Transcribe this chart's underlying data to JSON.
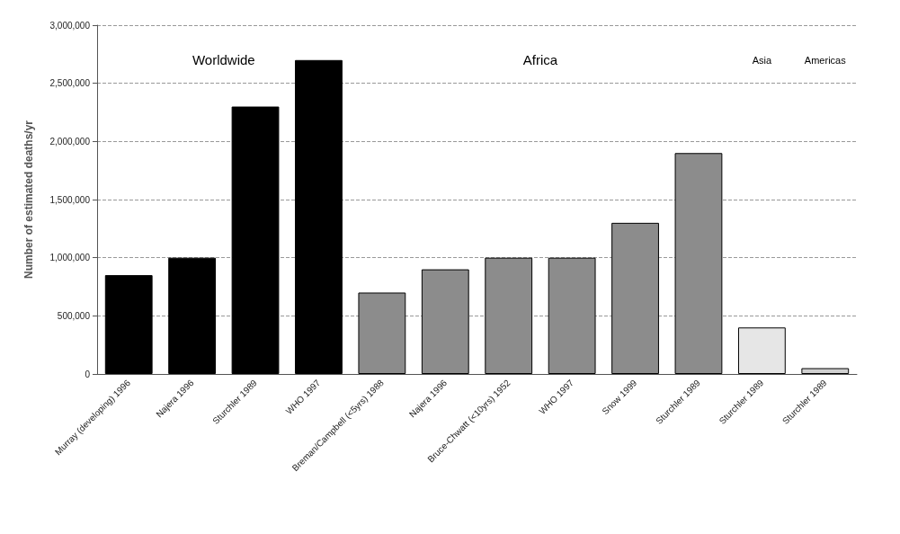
{
  "chart_data": {
    "type": "bar",
    "ylabel": "Number of estimated deaths/yr",
    "categories": [
      "Murray (developing) 1996",
      "Najera 1996",
      "Sturchler 1989",
      "WHO 1997",
      "Breman/Campbell (<5yrs) 1988",
      "Najera 1996",
      "Bruce-Chwatt (<10yrs) 1952",
      "WHO 1997",
      "Snow 1999",
      "Sturchler 1989",
      "Sturchler 1989",
      "Sturchler 1989"
    ],
    "stacked": true,
    "series": [
      {
        "color": "#000000",
        "values": [
          850000,
          1000000,
          2300000,
          2700000,
          null,
          null,
          null,
          null,
          null,
          null,
          null,
          null
        ]
      },
      {
        "color": "#8c8c8c",
        "values": [
          null,
          null,
          null,
          null,
          700000,
          900000,
          1000000,
          1000000,
          1300000,
          1900000,
          null,
          null
        ]
      },
      {
        "color": "#e6e6e6",
        "values": [
          null,
          null,
          null,
          null,
          null,
          null,
          null,
          null,
          null,
          null,
          400000,
          null
        ]
      },
      {
        "color": "#d0d0d0",
        "values": [
          null,
          null,
          null,
          null,
          null,
          null,
          null,
          null,
          null,
          null,
          null,
          50000
        ]
      }
    ],
    "annotations": [
      "Worldwide",
      "Africa",
      "Asia",
      "Americas"
    ],
    "ylim": [
      0,
      3000000
    ],
    "yticks": [
      0,
      {
        "value": 500000,
        "label": "500,000"
      },
      {
        "value": 1000000,
        "label": "1,000,000"
      },
      {
        "value": 1500000,
        "label": "1,500,000"
      },
      {
        "value": 2000000,
        "label": "2,000,000"
      },
      {
        "value": 2500000,
        "label": "2,500,000"
      },
      {
        "value": 3000000,
        "label": "3,000,000"
      }
    ],
    "grid": "y"
  }
}
